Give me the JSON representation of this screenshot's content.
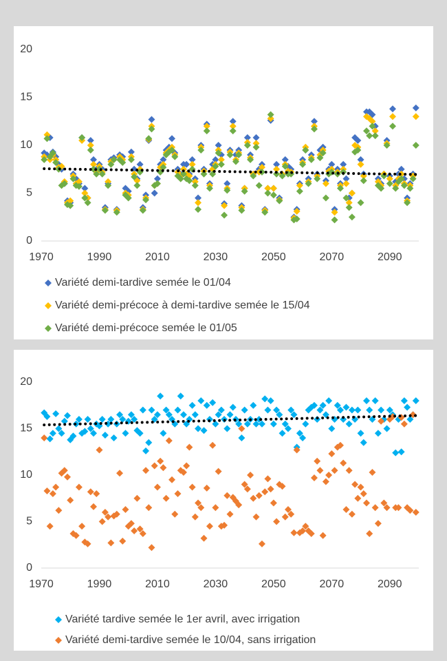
{
  "chart_data": [
    {
      "type": "scatter",
      "x": [
        1971,
        1972,
        1973,
        1974,
        1975,
        1976,
        1977,
        1978,
        1979,
        1980,
        1981,
        1982,
        1983,
        1984,
        1985,
        1986,
        1987,
        1988,
        1989,
        1990,
        1991,
        1992,
        1993,
        1994,
        1995,
        1996,
        1997,
        1998,
        1999,
        2000,
        2001,
        2002,
        2003,
        2004,
        2005,
        2006,
        2007,
        2008,
        2009,
        2010,
        2011,
        2012,
        2013,
        2014,
        2015,
        2016,
        2017,
        2018,
        2019,
        2020,
        2021,
        2022,
        2023,
        2024,
        2025,
        2026,
        2027,
        2028,
        2029,
        2030,
        2031,
        2032,
        2033,
        2034,
        2035,
        2036,
        2037,
        2038,
        2039,
        2040,
        2041,
        2042,
        2043,
        2044,
        2045,
        2046,
        2047,
        2048,
        2049,
        2050,
        2051,
        2052,
        2053,
        2054,
        2055,
        2056,
        2057,
        2058,
        2059,
        2060,
        2061,
        2062,
        2063,
        2064,
        2065,
        2066,
        2067,
        2068,
        2069,
        2070,
        2071,
        2072,
        2073,
        2074,
        2075,
        2076,
        2077,
        2078,
        2079,
        2080,
        2081,
        2082,
        2083,
        2084,
        2085,
        2086,
        2087,
        2088,
        2089,
        2090,
        2091,
        2092,
        2093,
        2094,
        2095,
        2096,
        2097,
        2098,
        2099
      ],
      "xlim": [
        1970,
        2100
      ],
      "xticks": [
        1970,
        1990,
        2010,
        2030,
        2050,
        2070,
        2090
      ],
      "ylim": [
        0,
        20
      ],
      "yticks": [
        0,
        5,
        10,
        15,
        20
      ],
      "series": [
        {
          "name": "Variété demi-tardive semée le 01/04",
          "color": "#4472c4",
          "values": [
            9.2,
            9.0,
            10.8,
            9.3,
            8.8,
            8.0,
            7.5,
            6.0,
            4.2,
            4.0,
            7.0,
            6.5,
            6.0,
            10.8,
            5.5,
            4.5,
            10.5,
            8.5,
            7.5,
            8.0,
            7.5,
            3.5,
            6.0,
            8.5,
            8.7,
            3.3,
            9.0,
            8.8,
            5.5,
            5.2,
            9.3,
            7.5,
            6.5,
            8.0,
            3.5,
            4.8,
            10.5,
            12.7,
            5.0,
            6.5,
            8.0,
            8.5,
            9.5,
            9.8,
            10.7,
            9.2,
            7.5,
            7.0,
            8.0,
            8.0,
            7.0,
            8.5,
            6.5,
            4.5,
            10.0,
            7.5,
            12.2,
            6.0,
            8.0,
            8.5,
            10.0,
            9.0,
            3.9,
            6.0,
            9.5,
            12.5,
            9.0,
            9.5,
            3.7,
            5.5,
            10.8,
            9.0,
            7.0,
            10.8,
            7.5,
            8.0,
            3.3,
            5.5,
            12.6,
            5.5,
            8.0,
            4.5,
            7.0,
            8.5,
            7.8,
            7.5,
            2.5,
            3.3,
            6.0,
            8.5,
            9.5,
            6.5,
            9.0,
            12.5,
            7.0,
            9.5,
            9.8,
            6.3,
            7.5,
            8.0,
            3.3,
            7.5,
            6.0,
            8.0,
            6.5,
            4.5,
            5.0,
            10.8,
            10.5,
            8.5,
            7.0,
            13.5,
            13.5,
            13.2,
            12.0,
            6.5,
            6.0,
            7.0,
            10.5,
            6.8,
            13.8,
            6.2,
            7.0,
            7.5,
            6.5,
            4.5,
            6.0,
            7.0,
            13.9
          ]
        },
        {
          "name": "Variété demi-précoce à demi-tardive semée le 15/04",
          "color": "#ffc000",
          "values": [
            8.8,
            11.1,
            8.5,
            9.0,
            8.5,
            7.7,
            7.8,
            6.2,
            4.0,
            4.2,
            6.8,
            6.0,
            6.2,
            10.5,
            5.0,
            4.5,
            10.0,
            8.0,
            7.2,
            7.8,
            7.2,
            3.3,
            6.2,
            8.3,
            8.5,
            3.2,
            8.8,
            8.5,
            5.0,
            4.8,
            8.8,
            7.0,
            6.3,
            7.5,
            3.3,
            4.5,
            10.6,
            12.0,
            5.8,
            6.0,
            7.7,
            8.0,
            9.2,
            9.5,
            9.8,
            9.0,
            7.2,
            6.8,
            7.5,
            7.0,
            6.8,
            8.0,
            6.2,
            4.0,
            9.8,
            7.3,
            12.0,
            5.8,
            7.5,
            8.0,
            9.5,
            8.5,
            3.7,
            5.5,
            9.3,
            12.0,
            8.5,
            9.2,
            3.5,
            5.5,
            10.3,
            8.7,
            7.0,
            10.2,
            7.2,
            7.7,
            3.2,
            5.5,
            12.8,
            5.5,
            7.5,
            4.3,
            7.0,
            8.0,
            7.3,
            7.2,
            2.4,
            3.1,
            5.8,
            8.2,
            9.8,
            6.2,
            8.7,
            12.0,
            6.8,
            9.0,
            9.5,
            6.0,
            7.3,
            7.5,
            3.0,
            7.2,
            5.8,
            7.5,
            6.0,
            4.0,
            5.0,
            10.0,
            9.8,
            8.0,
            6.8,
            13.0,
            12.8,
            12.5,
            11.5,
            6.2,
            5.8,
            7.0,
            10.2,
            6.5,
            13.0,
            5.8,
            6.5,
            7.0,
            6.0,
            4.2,
            5.8,
            6.8,
            13.0
          ]
        },
        {
          "name": "Variété demi-précoce semée le 01/05",
          "color": "#70ad47",
          "values": [
            8.5,
            10.7,
            8.8,
            9.2,
            8.2,
            7.5,
            5.8,
            6.0,
            3.8,
            3.7,
            6.5,
            5.8,
            5.7,
            10.8,
            4.5,
            4.0,
            9.5,
            7.5,
            7.0,
            7.5,
            7.0,
            3.2,
            5.8,
            8.0,
            8.5,
            3.0,
            8.5,
            8.2,
            4.8,
            4.5,
            8.5,
            6.7,
            5.8,
            7.2,
            3.2,
            4.3,
            10.7,
            11.7,
            5.8,
            6.0,
            7.2,
            7.7,
            9.0,
            9.3,
            9.5,
            8.8,
            6.8,
            6.5,
            7.0,
            6.5,
            6.3,
            7.5,
            5.8,
            3.3,
            9.5,
            7.0,
            11.5,
            5.5,
            7.0,
            7.8,
            9.2,
            8.0,
            2.7,
            5.3,
            9.0,
            11.5,
            8.3,
            9.0,
            3.2,
            5.2,
            10.0,
            8.5,
            6.8,
            9.8,
            5.8,
            7.2,
            3.0,
            5.0,
            13.2,
            4.8,
            7.0,
            4.2,
            6.8,
            7.8,
            7.0,
            7.0,
            2.2,
            2.3,
            5.2,
            8.0,
            9.5,
            6.0,
            8.5,
            11.7,
            6.5,
            8.7,
            9.2,
            4.5,
            7.0,
            7.2,
            2.2,
            7.0,
            5.5,
            7.2,
            4.5,
            3.5,
            2.5,
            9.3,
            9.5,
            4.0,
            6.3,
            11.5,
            11.0,
            12.0,
            11.0,
            5.8,
            5.5,
            6.8,
            10.0,
            6.0,
            12.0,
            5.5,
            6.2,
            6.5,
            5.8,
            4.0,
            5.5,
            6.5,
            10.0
          ]
        }
      ],
      "trendline": {
        "color": "#000000",
        "x": [
          1971,
          2099
        ],
        "values": [
          7.55,
          6.95
        ]
      }
    },
    {
      "type": "scatter",
      "x": [
        1971,
        1972,
        1973,
        1974,
        1975,
        1976,
        1977,
        1978,
        1979,
        1980,
        1981,
        1982,
        1983,
        1984,
        1985,
        1986,
        1987,
        1988,
        1989,
        1990,
        1991,
        1992,
        1993,
        1994,
        1995,
        1996,
        1997,
        1998,
        1999,
        2000,
        2001,
        2002,
        2003,
        2004,
        2005,
        2006,
        2007,
        2008,
        2009,
        2010,
        2011,
        2012,
        2013,
        2014,
        2015,
        2016,
        2017,
        2018,
        2019,
        2020,
        2021,
        2022,
        2023,
        2024,
        2025,
        2026,
        2027,
        2028,
        2029,
        2030,
        2031,
        2032,
        2033,
        2034,
        2035,
        2036,
        2037,
        2038,
        2039,
        2040,
        2041,
        2042,
        2043,
        2044,
        2045,
        2046,
        2047,
        2048,
        2049,
        2050,
        2051,
        2052,
        2053,
        2054,
        2055,
        2056,
        2057,
        2058,
        2059,
        2060,
        2061,
        2062,
        2063,
        2064,
        2065,
        2066,
        2067,
        2068,
        2069,
        2070,
        2071,
        2072,
        2073,
        2074,
        2075,
        2076,
        2077,
        2078,
        2079,
        2080,
        2081,
        2082,
        2083,
        2084,
        2085,
        2086,
        2087,
        2088,
        2089,
        2090,
        2091,
        2092,
        2093,
        2094,
        2095,
        2096,
        2097,
        2098,
        2099
      ],
      "xlim": [
        1970,
        2100
      ],
      "xticks": [
        1970,
        1990,
        2010,
        2030,
        2050,
        2070,
        2090
      ],
      "ylim": [
        0,
        20
      ],
      "yticks": [
        0,
        5,
        10,
        15,
        20
      ],
      "series": [
        {
          "name": "Variété tardive semée le 1er avril, avec irrigation",
          "color": "#00b0f0",
          "values": [
            16.7,
            16.3,
            13.9,
            14.5,
            16.6,
            15.0,
            14.5,
            15.8,
            16.4,
            13.8,
            14.2,
            15.5,
            16.0,
            14.5,
            14.7,
            16.0,
            15.0,
            14.5,
            15.5,
            15.3,
            16.0,
            14.3,
            15.5,
            16.0,
            14.0,
            15.5,
            16.5,
            16.0,
            14.5,
            15.8,
            16.5,
            16.0,
            14.8,
            14.5,
            17.0,
            12.6,
            13.5,
            17.0,
            16.0,
            16.5,
            18.5,
            14.5,
            17.0,
            16.5,
            16.0,
            15.5,
            17.0,
            18.5,
            16.5,
            15.5,
            16.0,
            17.5,
            16.5,
            15.0,
            18.0,
            14.8,
            17.5,
            16.0,
            17.8,
            15.5,
            16.5,
            17.0,
            16.0,
            15.0,
            16.5,
            17.3,
            16.0,
            15.5,
            14.0,
            17.0,
            15.5,
            16.0,
            17.5,
            15.5,
            16.0,
            15.5,
            18.2,
            17.0,
            18.0,
            15.5,
            17.0,
            16.5,
            14.5,
            15.5,
            15.0,
            17.0,
            16.5,
            13.0,
            14.5,
            14.0,
            15.5,
            17.0,
            17.3,
            17.5,
            16.0,
            17.0,
            17.5,
            16.5,
            18.0,
            15.0,
            16.0,
            17.5,
            17.0,
            16.0,
            17.3,
            15.5,
            17.0,
            16.0,
            17.0,
            14.5,
            13.5,
            18.0,
            17.0,
            16.0,
            18.0,
            14.5,
            17.0,
            16.0,
            15.0,
            17.0,
            16.5,
            12.4,
            16.0,
            12.5,
            18.0,
            17.3,
            16.0,
            16.5,
            18.0
          ]
        },
        {
          "name": "Variété demi-tardive semée le 10/04, sans irrigation",
          "color": "#ed7d31",
          "values": [
            14.0,
            8.3,
            4.5,
            8.0,
            8.7,
            6.2,
            10.2,
            10.5,
            9.8,
            7.3,
            3.7,
            3.5,
            8.7,
            4.5,
            2.8,
            2.6,
            8.2,
            6.6,
            8.0,
            12.7,
            5.0,
            6.0,
            5.5,
            2.7,
            5.6,
            5.8,
            10.2,
            2.9,
            6.3,
            4.5,
            4.8,
            4.0,
            7.5,
            4.2,
            3.7,
            10.5,
            6.5,
            2.2,
            11.0,
            8.7,
            11.5,
            10.8,
            7.5,
            13.7,
            9.5,
            5.8,
            8.0,
            10.5,
            10.3,
            11.0,
            13.0,
            8.7,
            5.5,
            7.0,
            6.5,
            3.2,
            8.6,
            4.5,
            13.2,
            6.5,
            10.4,
            4.5,
            4.6,
            7.8,
            5.8,
            7.6,
            7.2,
            6.8,
            15.0,
            9.0,
            8.5,
            10.0,
            7.5,
            5.5,
            7.8,
            2.6,
            8.2,
            9.6,
            8.5,
            7.0,
            5.0,
            9.0,
            8.8,
            5.5,
            6.3,
            5.8,
            3.8,
            12.7,
            3.8,
            4.0,
            4.5,
            4.0,
            3.7,
            9.7,
            11.5,
            10.5,
            3.5,
            9.3,
            10.0,
            12.3,
            10.5,
            13.0,
            13.2,
            11.3,
            6.3,
            10.5,
            5.8,
            9.0,
            7.5,
            8.7,
            8.0,
            7.0,
            3.7,
            10.3,
            6.5,
            4.8,
            15.8,
            7.0,
            6.5,
            16.0,
            16.3,
            6.5,
            6.5,
            16.2,
            15.5,
            6.5,
            6.2,
            16.5,
            6.0
          ]
        }
      ],
      "trendline": {
        "color": "#000000",
        "x": [
          1971,
          2099
        ],
        "values": [
          15.4,
          16.4
        ]
      }
    }
  ]
}
